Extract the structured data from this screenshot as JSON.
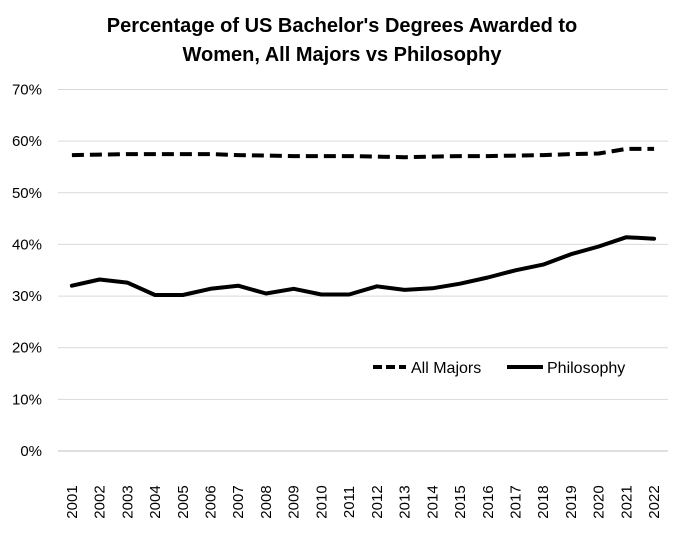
{
  "chart_data": {
    "type": "line",
    "title_lines": [
      "Percentage of US Bachelor's Degrees Awarded to",
      "Women, All Majors vs Philosophy"
    ],
    "categories": [
      "2001",
      "2002",
      "2003",
      "2004",
      "2005",
      "2006",
      "2007",
      "2008",
      "2009",
      "2010",
      "2011",
      "2012",
      "2013",
      "2014",
      "2015",
      "2016",
      "2017",
      "2018",
      "2019",
      "2020",
      "2021",
      "2022"
    ],
    "y_ticks": [
      "0%",
      "10%",
      "20%",
      "30%",
      "40%",
      "50%",
      "60%",
      "70%"
    ],
    "ylim": [
      0,
      70
    ],
    "grid": true,
    "legend_position": "inside-lower-right",
    "series": [
      {
        "name": "All Majors",
        "style": "dashed",
        "color": "#000000",
        "values": [
          57.3,
          57.4,
          57.5,
          57.5,
          57.5,
          57.5,
          57.3,
          57.2,
          57.1,
          57.1,
          57.1,
          57.0,
          56.9,
          57.0,
          57.1,
          57.1,
          57.2,
          57.3,
          57.5,
          57.6,
          58.5,
          58.5
        ]
      },
      {
        "name": "Philosophy",
        "style": "solid",
        "color": "#000000",
        "values": [
          32.0,
          33.2,
          32.6,
          30.2,
          30.2,
          31.4,
          32.0,
          30.5,
          31.4,
          30.3,
          30.3,
          31.9,
          31.2,
          31.5,
          32.4,
          33.6,
          35.0,
          36.1,
          38.1,
          39.6,
          41.4,
          41.1
        ]
      }
    ]
  }
}
